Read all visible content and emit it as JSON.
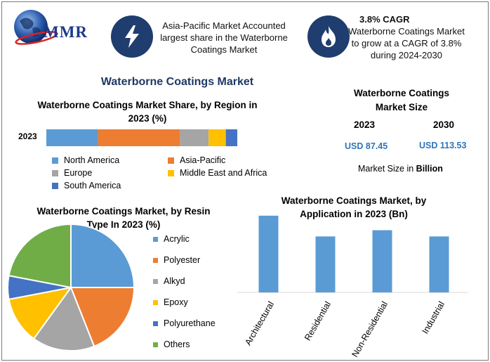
{
  "header": {
    "logo_text": "MMR",
    "box1_text": "Asia-Pacific Market Accounted largest share in the Waterborne Coatings Market",
    "box2_title": "3.8% CAGR",
    "box2_text": "Waterborne Coatings Market to grow at a CAGR of 3.8% during 2024-2030",
    "box1_icon": "lightning-icon",
    "box2_icon": "flame-icon"
  },
  "main_title": "Waterborne Coatings Market",
  "market_size": {
    "title": "Waterborne Coatings Market Size",
    "year1": "2023",
    "year2": "2030",
    "value1": "USD 87.45",
    "value2": "USD 113.53",
    "unit_prefix": "Market Size in ",
    "unit_bold": "Billion"
  },
  "chart_data": [
    {
      "type": "bar",
      "orientation": "horizontal-stacked",
      "title": "Waterborne Coatings Market Share, by Region in 2023 (%)",
      "categories": [
        "2023"
      ],
      "series": [
        {
          "name": "North America",
          "values": [
            27
          ],
          "color": "#5b9bd5"
        },
        {
          "name": "Asia-Pacific",
          "values": [
            43
          ],
          "color": "#ed7d31"
        },
        {
          "name": "Europe",
          "values": [
            15
          ],
          "color": "#a5a5a5"
        },
        {
          "name": "Middle East and Africa",
          "values": [
            9
          ],
          "color": "#ffc000"
        },
        {
          "name": "South America",
          "values": [
            6
          ],
          "color": "#4472c4"
        }
      ],
      "legend": "bottom"
    },
    {
      "type": "pie",
      "title": "Waterborne Coatings Market, by Resin Type In 2023 (%)",
      "labels": [
        "Acrylic",
        "Polyester",
        "Alkyd",
        "Epoxy",
        "Polyurethane",
        "Others"
      ],
      "values": [
        25,
        19,
        16,
        12,
        6,
        22
      ],
      "colors": [
        "#5b9bd5",
        "#ed7d31",
        "#a5a5a5",
        "#ffc000",
        "#4472c4",
        "#70ad47"
      ],
      "legend": "right"
    },
    {
      "type": "bar",
      "title": "Waterborne Coatings Market, by Application in 2023 (Bn)",
      "categories": [
        "Architectural",
        "Residential",
        "Non-Residential",
        "Industrial"
      ],
      "values": [
        37,
        27,
        30,
        27
      ],
      "ylim": [
        0,
        40
      ],
      "color": "#5b9bd5",
      "grid": false
    }
  ]
}
